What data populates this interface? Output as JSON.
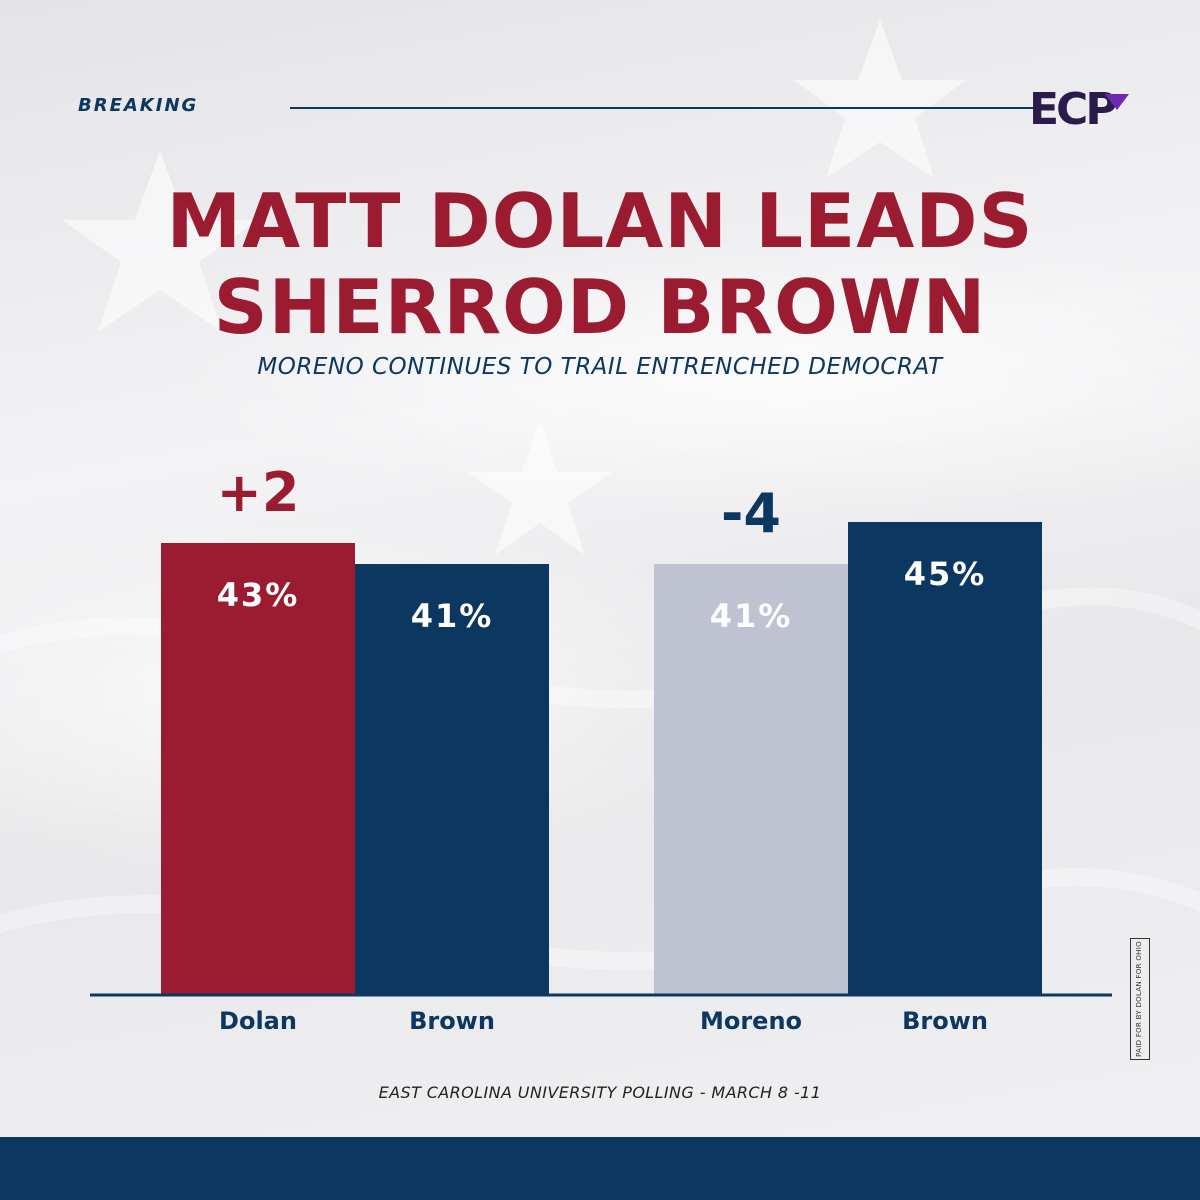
{
  "header": {
    "label": "BREAKING",
    "logo_text": "ECP"
  },
  "headline": {
    "line1": "MATT DOLAN LEADS",
    "line2": "SHERROD BROWN"
  },
  "subhead": "MORENO CONTINUES TO TRAIL ENTRENCHED DEMOCRAT",
  "chart_data": {
    "type": "bar",
    "title": "MATT DOLAN LEADS SHERROD BROWN",
    "subtitle": "MORENO CONTINUES TO TRAIL ENTRENCHED DEMOCRAT",
    "xlabel": "",
    "ylabel": "",
    "ylim": [
      0,
      50
    ],
    "grid": false,
    "groups": [
      {
        "margin_label": "+2",
        "bars": [
          {
            "category": "Dolan",
            "value": 43,
            "label": "43%",
            "color": "#9b1b30"
          },
          {
            "category": "Brown",
            "value": 41,
            "label": "41%",
            "color": "#0b3760"
          }
        ]
      },
      {
        "margin_label": "-4",
        "bars": [
          {
            "category": "Moreno",
            "value": 41,
            "label": "41%",
            "color": "#bfc3d1"
          },
          {
            "category": "Brown",
            "value": 45,
            "label": "45%",
            "color": "#0b3760"
          }
        ]
      }
    ]
  },
  "source": "EAST CAROLINA UNIVERSITY POLLING - MARCH 8 -11",
  "disclaimer": "PAID FOR BY DOLAN FOR OHIO",
  "colors": {
    "navy": "#0b3760",
    "red": "#9b1b30",
    "gray": "#bfc3d1"
  }
}
